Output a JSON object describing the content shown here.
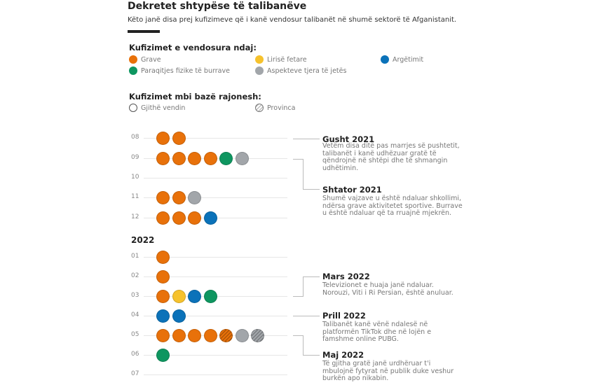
{
  "header": {
    "title": "Dekretet shtypëse të talibanëve",
    "subtitle": "Këto janë disa prej kufizimeve që i kanë vendosur talibanët në shumë sektorë të Afganistanit."
  },
  "legend": {
    "category_title": "Kufizimet e vendosura ndaj:",
    "categories": [
      {
        "key": "grave",
        "label": "Grave",
        "color": "#e8710a"
      },
      {
        "key": "fetare",
        "label": "Lirisë fetare",
        "color": "#f6c22d"
      },
      {
        "key": "argetim",
        "label": "Argëtimit",
        "color": "#0b72b9"
      },
      {
        "key": "burra",
        "label": "Paraqitjes fizike të burrave",
        "color": "#0e9660"
      },
      {
        "key": "tjera",
        "label": "Aspekteve tjera të jetës",
        "color": "#a2a6aa"
      }
    ],
    "region_title": "Kufizimet mbi bazë rajonesh:",
    "regions": [
      {
        "label": "Gjithë vendin"
      },
      {
        "label": "Provinca"
      }
    ]
  },
  "timeline": {
    "year_label": "2022",
    "rows": [
      {
        "label": "08",
        "dots": [
          [
            "grave",
            0
          ],
          [
            "grave",
            0
          ]
        ]
      },
      {
        "label": "09",
        "dots": [
          [
            "grave",
            0
          ],
          [
            "grave",
            0
          ],
          [
            "grave",
            0
          ],
          [
            "grave",
            0
          ],
          [
            "burra",
            0
          ],
          [
            "tjera",
            0
          ]
        ]
      },
      {
        "label": "10",
        "dots": []
      },
      {
        "label": "11",
        "dots": [
          [
            "grave",
            0
          ],
          [
            "grave",
            0
          ],
          [
            "tjera",
            0
          ]
        ]
      },
      {
        "label": "12",
        "dots": [
          [
            "grave",
            0
          ],
          [
            "grave",
            0
          ],
          [
            "grave",
            0
          ],
          [
            "argetim",
            0
          ]
        ]
      },
      {
        "label": "01",
        "dots": [
          [
            "grave",
            0
          ]
        ]
      },
      {
        "label": "02",
        "dots": [
          [
            "grave",
            0
          ]
        ]
      },
      {
        "label": "03",
        "dots": [
          [
            "grave",
            0
          ],
          [
            "fetare",
            0
          ],
          [
            "argetim",
            0
          ],
          [
            "burra",
            0
          ]
        ]
      },
      {
        "label": "04",
        "dots": [
          [
            "argetim",
            0
          ],
          [
            "argetim",
            0
          ]
        ]
      },
      {
        "label": "05",
        "dots": [
          [
            "grave",
            0
          ],
          [
            "grave",
            0
          ],
          [
            "grave",
            0
          ],
          [
            "grave",
            0
          ],
          [
            "grave",
            1
          ],
          [
            "tjera",
            0
          ],
          [
            "tjera",
            1
          ]
        ]
      },
      {
        "label": "06",
        "dots": [
          [
            "burra",
            0
          ]
        ]
      },
      {
        "label": "07",
        "dots": []
      }
    ]
  },
  "annotations": [
    {
      "title": "Gusht 2021",
      "text": "Vetëm disa ditë pas marrjes së pushtetit, talibanët i kanë udhëzuar gratë të qëndrojnë në shtëpi dhe të shmangin udhëtimin."
    },
    {
      "title": "Shtator 2021",
      "text": "Shumë vajzave u është ndaluar shkollimi, ndërsa grave aktivitetet sportive. Burrave u është ndaluar që ta rruajnë mjekrën."
    },
    {
      "title": "Mars 2022",
      "text": "Televizionet e huaja janë ndaluar. Norouzi, Viti i Ri Persian, është anuluar."
    },
    {
      "title": "Prill 2022",
      "text": "Talibanët kanë vënë ndalesë në platformën TikTok dhe në lojën e famshme online PUBG."
    },
    {
      "title": "Maj 2022",
      "text": "Të gjitha gratë janë urdhëruar t'i mbulojnë fytyrat në publik duke veshur burkën apo nikabin."
    }
  ]
}
